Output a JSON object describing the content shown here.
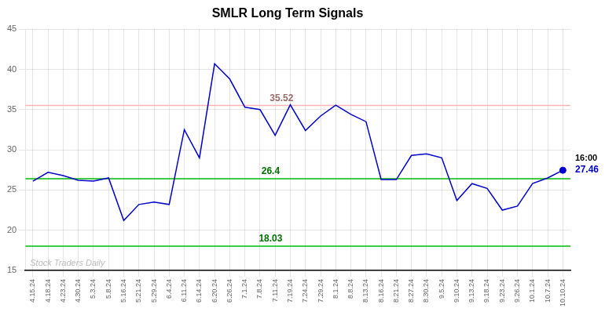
{
  "chart_data": {
    "type": "line",
    "title": "SMLR Long Term Signals",
    "color": "#0000cc",
    "categories": [
      "4.15.24",
      "4.18.24",
      "4.23.24",
      "4.30.24",
      "5.3.24",
      "5.8.24",
      "5.16.24",
      "5.21.24",
      "5.29.24",
      "6.4.24",
      "6.11.24",
      "6.14.24",
      "6.20.24",
      "6.26.24",
      "7.1.24",
      "7.8.24",
      "7.11.24",
      "7.19.24",
      "7.24.24",
      "7.29.24",
      "8.1.24",
      "8.8.24",
      "8.13.24",
      "8.16.24",
      "8.21.24",
      "8.27.24",
      "8.30.24",
      "9.5.24",
      "9.10.24",
      "9.13.24",
      "9.18.24",
      "9.23.24",
      "9.26.24",
      "10.1.24",
      "10.7.24",
      "10.10.24"
    ],
    "values": [
      26.1,
      27.2,
      26.8,
      26.2,
      26.1,
      26.5,
      21.2,
      23.2,
      23.5,
      23.2,
      32.5,
      29.0,
      40.7,
      38.8,
      35.3,
      35.0,
      31.8,
      35.6,
      32.4,
      34.2,
      35.55,
      34.4,
      33.5,
      26.3,
      26.3,
      29.3,
      29.5,
      29.0,
      23.7,
      25.8,
      25.2,
      22.5,
      23.0,
      25.8,
      26.5,
      27.46
    ],
    "ylim": [
      15,
      45
    ],
    "yticks": [
      15,
      20,
      25,
      30,
      35,
      40,
      45
    ],
    "grid": true,
    "hlines": [
      {
        "value": 35.52,
        "label": "35.52",
        "color": "#ffb3b3"
      },
      {
        "value": 26.4,
        "label": "26.4",
        "color": "#00bb00"
      },
      {
        "value": 18.03,
        "label": "18.03",
        "color": "#00bb00"
      }
    ],
    "last_point": {
      "label": "27.46",
      "time": "16:00",
      "marker": "circle"
    },
    "watermark": "Stock Traders Daily"
  }
}
